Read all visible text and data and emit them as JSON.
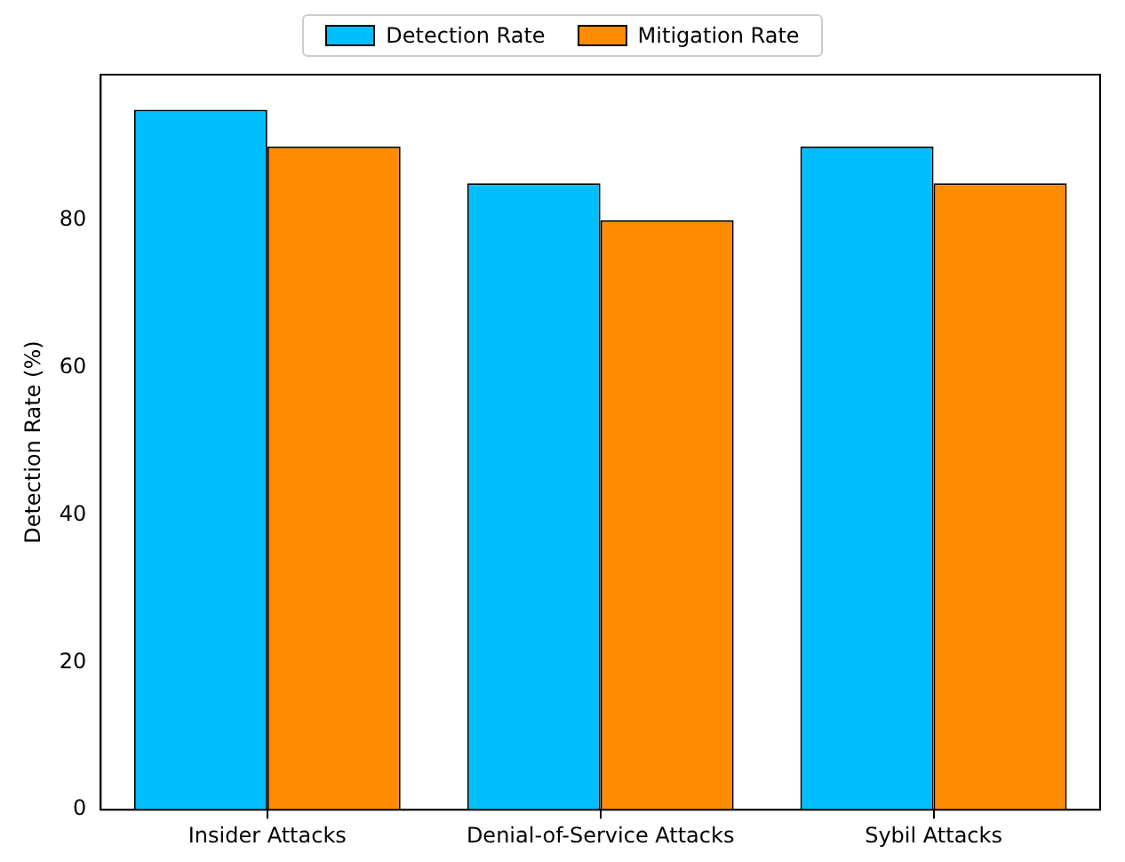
{
  "chart_data": {
    "type": "bar",
    "ylabel": "Detection Rate (%)",
    "categories": [
      "Insider Attacks",
      "Denial-of-Service Attacks",
      "Sybil Attacks"
    ],
    "series": [
      {
        "name": "Detection Rate",
        "color": "#00bfff",
        "values": [
          95,
          85,
          90
        ]
      },
      {
        "name": "Mitigation Rate",
        "color": "#ff8c00",
        "values": [
          90,
          80,
          85
        ]
      }
    ],
    "ylim": [
      0,
      99.75
    ],
    "yticks": [
      0,
      20,
      40,
      60,
      80
    ],
    "grid": false,
    "legend": "top"
  }
}
